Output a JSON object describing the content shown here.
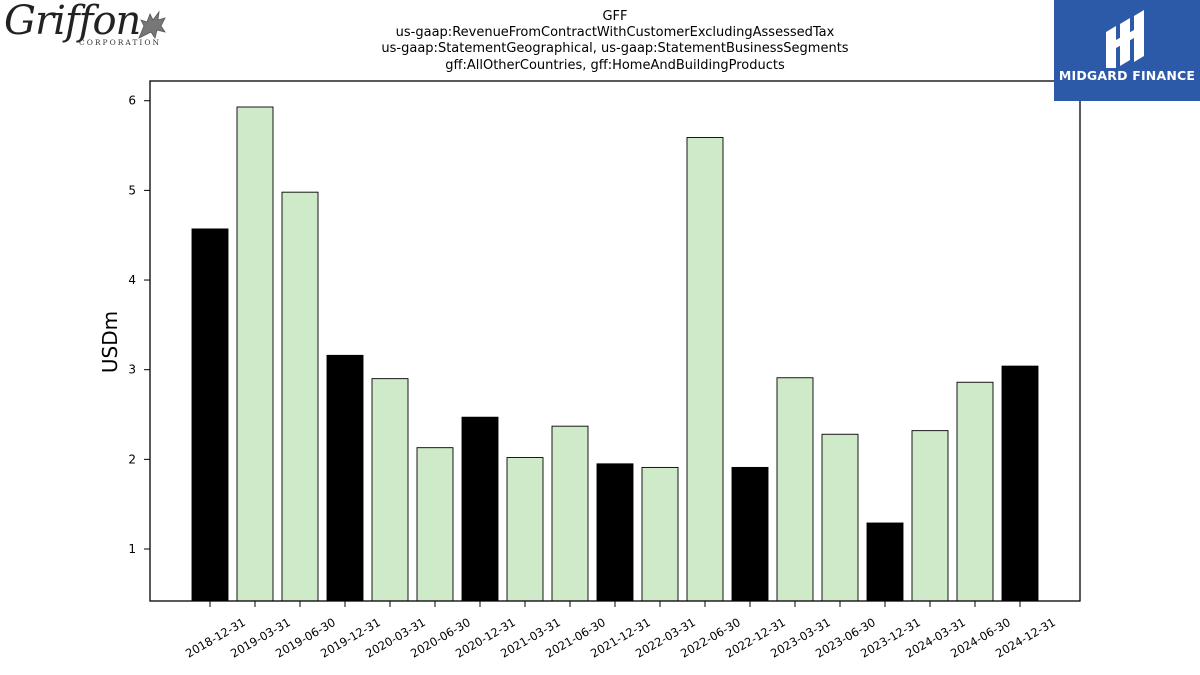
{
  "branding": {
    "left_logo": {
      "name": "Griffon",
      "subtitle": "CORPORATION",
      "icon": "griffin-icon"
    },
    "right_logo": {
      "name": "MIDGARD FINANCE",
      "icon": "midgard-mark-icon",
      "background": "#2d5aa8"
    }
  },
  "chart_data": {
    "type": "bar",
    "title": "GFF",
    "subtitle_lines": [
      "us-gaap:RevenueFromContractWithCustomerExcludingAssessedTax",
      "us-gaap:StatementGeographical, us-gaap:StatementBusinessSegments",
      "gff:AllOtherCountries, gff:HomeAndBuildingProducts"
    ],
    "xlabel": "",
    "ylabel": "USDm",
    "ylim": [
      0.42,
      6.22
    ],
    "yticks": [
      1,
      2,
      3,
      4,
      5,
      6
    ],
    "grid": false,
    "categories": [
      "2018-12-31",
      "2019-03-31",
      "2019-06-30",
      "2019-12-31",
      "2020-03-31",
      "2020-06-30",
      "2020-12-31",
      "2021-03-31",
      "2021-06-30",
      "2021-12-31",
      "2022-03-31",
      "2022-06-30",
      "2022-12-31",
      "2023-03-31",
      "2023-06-30",
      "2023-12-31",
      "2024-03-31",
      "2024-06-30",
      "2024-12-31"
    ],
    "values": [
      4.57,
      5.93,
      4.98,
      3.16,
      2.9,
      2.13,
      2.47,
      2.02,
      2.37,
      1.95,
      1.91,
      5.59,
      1.91,
      2.91,
      2.28,
      1.29,
      2.32,
      2.86,
      3.04
    ],
    "bar_colors": [
      "#000000",
      "#cfeac8",
      "#cfeac8",
      "#000000",
      "#cfeac8",
      "#cfeac8",
      "#000000",
      "#cfeac8",
      "#cfeac8",
      "#000000",
      "#cfeac8",
      "#cfeac8",
      "#000000",
      "#cfeac8",
      "#cfeac8",
      "#000000",
      "#cfeac8",
      "#cfeac8",
      "#000000"
    ]
  }
}
